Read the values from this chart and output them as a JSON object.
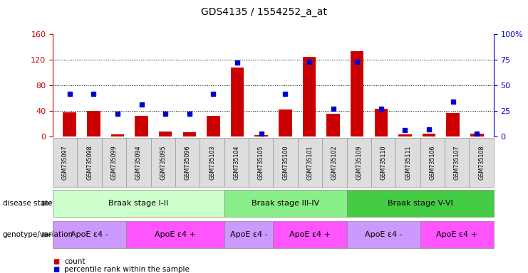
{
  "title": "GDS4135 / 1554252_a_at",
  "samples": [
    "GSM735097",
    "GSM735098",
    "GSM735099",
    "GSM735094",
    "GSM735095",
    "GSM735096",
    "GSM735103",
    "GSM735104",
    "GSM735105",
    "GSM735100",
    "GSM735101",
    "GSM735102",
    "GSM735109",
    "GSM735110",
    "GSM735111",
    "GSM735106",
    "GSM735107",
    "GSM735108"
  ],
  "counts": [
    38,
    40,
    3,
    32,
    8,
    7,
    32,
    108,
    2,
    42,
    125,
    36,
    133,
    43,
    3,
    5,
    37,
    4
  ],
  "percentile": [
    42,
    42,
    22,
    31,
    22,
    22,
    42,
    72,
    3,
    42,
    73,
    27,
    73,
    27,
    6,
    7,
    34,
    3
  ],
  "bar_color": "#cc0000",
  "marker_color": "#0000cc",
  "left_ylim": [
    0,
    160
  ],
  "right_ylim": [
    0,
    100
  ],
  "left_yticks": [
    0,
    40,
    80,
    120,
    160
  ],
  "right_yticks": [
    0,
    25,
    50,
    75,
    100
  ],
  "right_yticklabels": [
    "0",
    "25",
    "50",
    "75",
    "100%"
  ],
  "grid_values": [
    40,
    80,
    120
  ],
  "disease_state_groups": [
    {
      "label": "Braak stage I-II",
      "start": 0,
      "end": 7,
      "color": "#ccffcc"
    },
    {
      "label": "Braak stage III-IV",
      "start": 7,
      "end": 12,
      "color": "#88ee88"
    },
    {
      "label": "Braak stage V-VI",
      "start": 12,
      "end": 18,
      "color": "#44cc44"
    }
  ],
  "genotype_groups": [
    {
      "label": "ApoE ε4 -",
      "start": 0,
      "end": 3,
      "color": "#cc99ff"
    },
    {
      "label": "ApoE ε4 +",
      "start": 3,
      "end": 7,
      "color": "#ff55ff"
    },
    {
      "label": "ApoE ε4 -",
      "start": 7,
      "end": 9,
      "color": "#cc99ff"
    },
    {
      "label": "ApoE ε4 +",
      "start": 9,
      "end": 12,
      "color": "#ff55ff"
    },
    {
      "label": "ApoE ε4 -",
      "start": 12,
      "end": 15,
      "color": "#cc99ff"
    },
    {
      "label": "ApoE ε4 +",
      "start": 15,
      "end": 18,
      "color": "#ff55ff"
    }
  ],
  "axis_color_left": "#cc0000",
  "axis_color_right": "#0000cc",
  "label_disease": "disease state",
  "label_genotype": "genotype/variation",
  "legend_count": "count",
  "legend_percentile": "percentile rank within the sample",
  "sample_bg_color": "#dddddd"
}
